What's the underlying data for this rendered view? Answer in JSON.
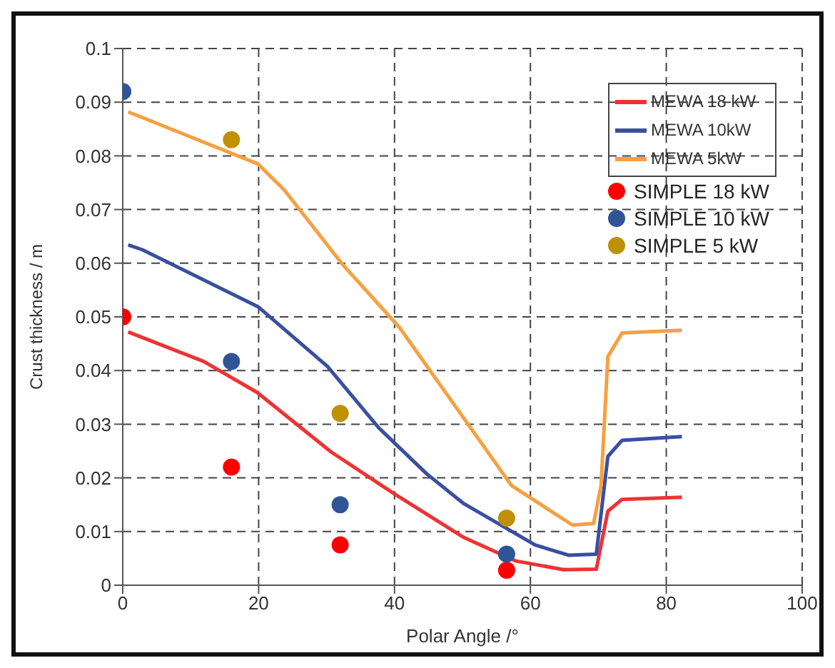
{
  "chart_data": {
    "type": "line",
    "xlabel": "Polar Angle /°",
    "ylabel": "Crust thickness / m",
    "xlim": [
      0,
      100
    ],
    "xticks": [
      0,
      20,
      40,
      60,
      80,
      100
    ],
    "ylim": [
      0,
      0.1
    ],
    "yticks": [
      0,
      0.01,
      0.02,
      0.03,
      0.04,
      0.05,
      0.06,
      0.07,
      0.08,
      0.09,
      0.1
    ],
    "grid": true,
    "legend": "top right",
    "series": [
      {
        "name": "MEWA 18 kW",
        "marker": "none",
        "color": "#ee3333",
        "x": [
          0.8,
          11.9,
          19.8,
          30.7,
          40,
          50.2,
          57.9,
          64.9,
          69.7,
          71.4,
          73.5,
          82.3
        ],
        "values": [
          0.0472,
          0.0417,
          0.0359,
          0.0248,
          0.017,
          0.0089,
          0.0045,
          0.0029,
          0.003,
          0.0138,
          0.016,
          0.0164
        ]
      },
      {
        "name": "MEWA 10kW",
        "marker": "none",
        "color": "#3a4fa0",
        "x": [
          0.8,
          2.9,
          19.9,
          30.1,
          37.7,
          44.7,
          50.2,
          60.7,
          65.6,
          69.7,
          71.4,
          73.5,
          82.3
        ],
        "values": [
          0.0634,
          0.0625,
          0.0519,
          0.0408,
          0.0293,
          0.0208,
          0.0152,
          0.0075,
          0.0056,
          0.0058,
          0.024,
          0.027,
          0.0277
        ]
      },
      {
        "name": "MEWA 5kW",
        "marker": "none",
        "color": "#f7a040",
        "x": [
          0.8,
          19.9,
          23.8,
          32.2,
          40.8,
          57.2,
          66.2,
          69.3,
          70.4,
          71.4,
          73.5,
          82.3
        ],
        "values": [
          0.0882,
          0.0785,
          0.0736,
          0.06,
          0.0479,
          0.0186,
          0.0112,
          0.0115,
          0.0186,
          0.0426,
          0.047,
          0.0475
        ]
      },
      {
        "name": "SIMPLE 18 kW",
        "type": "scatter",
        "marker": "circle",
        "color": "#ff0000",
        "x": [
          0,
          16,
          32,
          56.5
        ],
        "values": [
          0.05,
          0.022,
          0.0075,
          0.0028
        ]
      },
      {
        "name": "SIMPLE 10 kW",
        "type": "scatter",
        "marker": "circle",
        "color": "#2f5597",
        "x": [
          0,
          16,
          32,
          56.5
        ],
        "values": [
          0.092,
          0.0417,
          0.015,
          0.0058
        ]
      },
      {
        "name": "SIMPLE 5 kW",
        "type": "scatter",
        "marker": "circle",
        "color": "#bf9000",
        "x": [
          16,
          32,
          56.5
        ],
        "values": [
          0.083,
          0.032,
          0.0125
        ]
      }
    ]
  }
}
